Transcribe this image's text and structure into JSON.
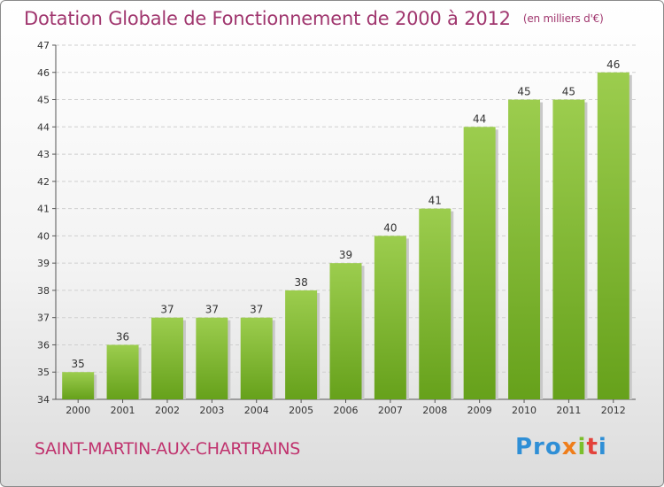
{
  "header": {
    "title": "Dotation Globale de Fonctionnement de 2000 à 2012",
    "unit": "(en milliers d'€)"
  },
  "footer": {
    "city": "SAINT-MARTIN-AUX-CHARTRAINS",
    "brand_letters": [
      "Pro",
      "x",
      "i",
      "t",
      "i"
    ]
  },
  "colors": {
    "title": "#a0366e",
    "city": "#c0336e",
    "bar_top": "#9ccd4e",
    "bar_bottom": "#66a11b",
    "bar_shadow": "#c8c8c8",
    "grid": "#cfcfcf"
  },
  "chart_data": {
    "type": "bar",
    "categories": [
      "2000",
      "2001",
      "2002",
      "2003",
      "2004",
      "2005",
      "2006",
      "2007",
      "2008",
      "2009",
      "2010",
      "2011",
      "2012"
    ],
    "values": [
      35,
      36,
      37,
      37,
      37,
      38,
      39,
      40,
      41,
      44,
      45,
      45,
      46
    ],
    "data_labels": [
      "35",
      "36",
      "37",
      "37",
      "37",
      "38",
      "39",
      "40",
      "41",
      "44",
      "45",
      "45",
      "46"
    ],
    "ylim": [
      34,
      47
    ],
    "yticks": [
      34,
      35,
      36,
      37,
      38,
      39,
      40,
      41,
      42,
      43,
      44,
      45,
      46,
      47
    ],
    "grid": "horizontal dashed",
    "legend": "none"
  }
}
